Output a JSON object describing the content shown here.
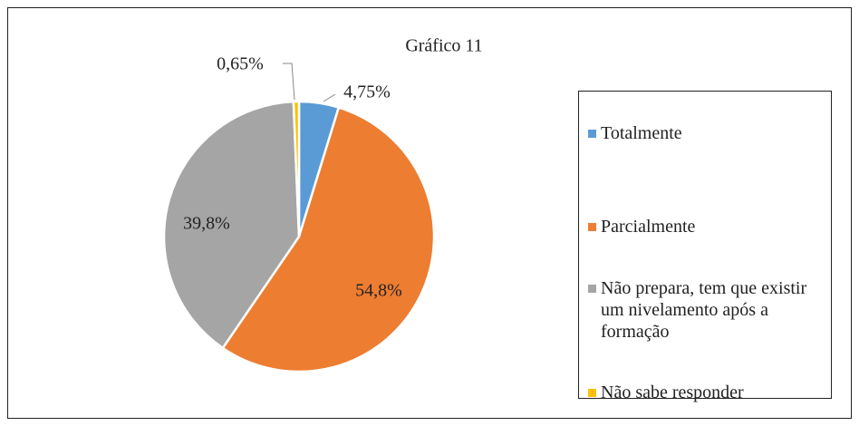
{
  "chart_data": {
    "type": "pie",
    "title": "Gráfico 11",
    "categories": [
      "Totalmente",
      "Parcialmente",
      "Não prepara, tem que existir um nivelamento após a formação",
      "Não sabe responder"
    ],
    "values": [
      4.75,
      54.8,
      39.8,
      0.65
    ],
    "value_labels": [
      "4,75%",
      "54,8%",
      "39,8%",
      "0,65%"
    ],
    "colors": [
      "#5b9bd5",
      "#ed7d31",
      "#a5a5a5",
      "#ffc000"
    ],
    "legend": "right"
  }
}
